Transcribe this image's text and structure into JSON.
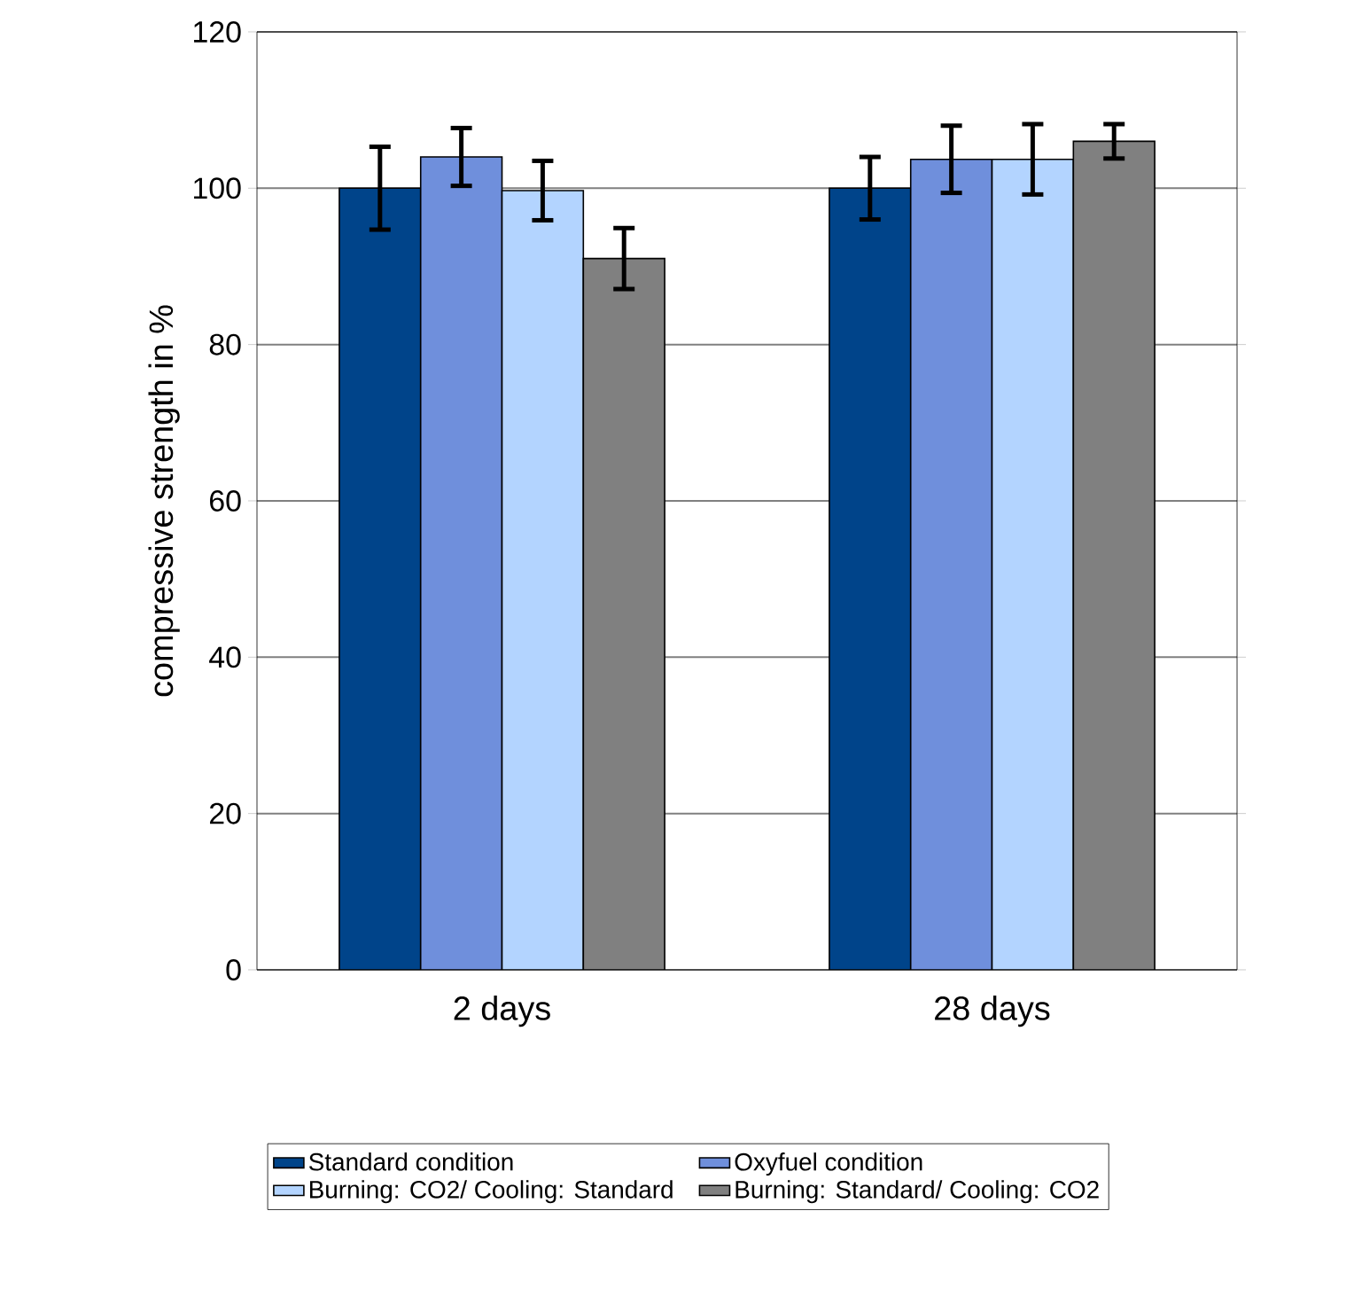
{
  "chart_data": {
    "type": "bar",
    "ylabel": "compressive strength in %",
    "categories": [
      "2 days",
      "28 days"
    ],
    "series": [
      {
        "name": "Standard condition",
        "color": "#00448a",
        "values": [
          100,
          100
        ],
        "errors": [
          5.3,
          4.0
        ]
      },
      {
        "name": "Oxyfuel condition",
        "color": "#6f8fdc",
        "values": [
          104.0,
          103.7
        ],
        "errors": [
          3.7,
          4.3
        ]
      },
      {
        "name": "Burning: CO2/ Cooling: Standard",
        "color": "#b3d4ff",
        "values": [
          99.7,
          103.7
        ],
        "errors": [
          3.8,
          4.5
        ]
      },
      {
        "name": "Burning: Standard/ Cooling: CO2",
        "color": "#808080",
        "values": [
          91.0,
          106.0
        ],
        "errors": [
          3.9,
          2.2
        ]
      }
    ],
    "ylim": [
      0,
      120
    ],
    "yticks": [
      0,
      20,
      40,
      60,
      80,
      100,
      120
    ],
    "grid": "y",
    "legend": "bottom"
  }
}
